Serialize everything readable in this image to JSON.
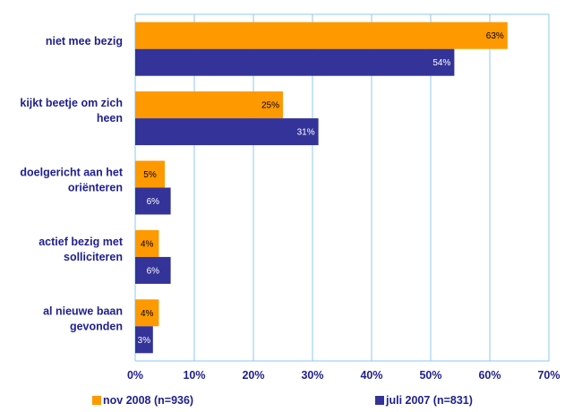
{
  "chart_data": {
    "type": "bar",
    "orientation": "horizontal",
    "categories": [
      [
        "niet mee bezig"
      ],
      [
        "kijkt beetje om zich",
        "heen"
      ],
      [
        "doelgericht aan het",
        "oriënteren"
      ],
      [
        "actief bezig met",
        "solliciteren"
      ],
      [
        "al nieuwe baan",
        "gevonden"
      ]
    ],
    "series": [
      {
        "name": "nov 2008 (n=936)",
        "color": "#ff9900",
        "label_color": "#000000",
        "values": [
          63,
          25,
          5,
          4,
          4
        ],
        "labels": [
          "63%",
          "25%",
          "5%",
          "4%",
          "4%"
        ]
      },
      {
        "name": "juli 2007 (n=831)",
        "color": "#333399",
        "label_color": "#ffffff",
        "values": [
          54,
          31,
          6,
          6,
          3
        ],
        "labels": [
          "54%",
          "31%",
          "6%",
          "6%",
          "3%"
        ]
      }
    ],
    "xlim": [
      0,
      70
    ],
    "xticks": [
      "0%",
      "10%",
      "20%",
      "30%",
      "40%",
      "50%",
      "60%",
      "70%"
    ],
    "grid": true,
    "gridline_color": "#8ec8f0",
    "legend_position": "bottom"
  }
}
